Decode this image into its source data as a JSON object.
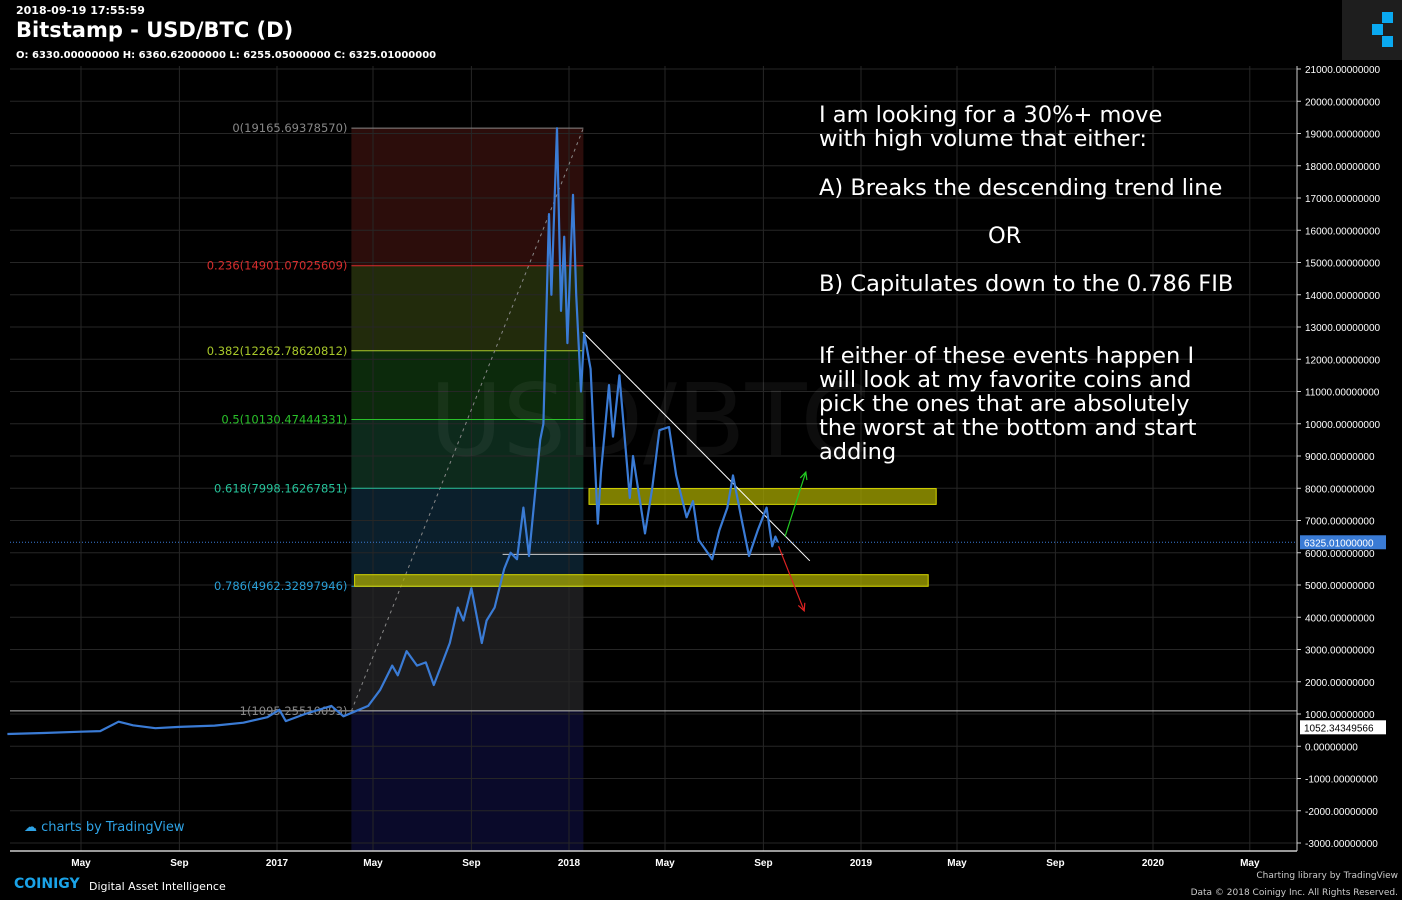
{
  "header": {
    "timestamp": "2018-09-19 17:55:59",
    "title": "Bitstamp - USD/BTC (D)",
    "ohlc": "O: 6330.00000000 H: 6360.62000000 L: 6255.05000000 C: 6325.01000000"
  },
  "watermark": "USD/BTC",
  "annotation": {
    "line1": "I am looking for a 30%+ move\nwith high volume that either:",
    "line2": "A) Breaks the descending trend line",
    "line3": "OR",
    "line4": "B) Capitulates down to the 0.786 FIB",
    "line5": "If either of these events happen I\nwill look at my favorite coins and\npick the ones that are absolutely\nthe worst at the bottom and start\nadding"
  },
  "footer": {
    "tv_credit": "charts by TradingView",
    "brand": "COINIGY",
    "brand_sub": "Digital Asset Intelligence",
    "library": "Charting library by  TradingView",
    "copyright": "Data © 2018  Coinigy Inc. All Rights Reserved."
  },
  "colors": {
    "price": "#3a7bd5",
    "last_price_bg": "#3a7bd5",
    "zone": "#a8a800",
    "up_arrow": "#22cc22",
    "down_arrow": "#dd2222"
  },
  "chart_data": {
    "type": "line",
    "title": "Bitstamp - USD/BTC (D)",
    "ylim": [
      -3000,
      21000
    ],
    "ytick_step": 1000,
    "ytick_labels": [
      "21000.00000000",
      "20000.00000000",
      "19000.00000000",
      "18000.00000000",
      "17000.00000000",
      "16000.00000000",
      "15000.00000000",
      "14000.00000000",
      "13000.00000000",
      "12000.00000000",
      "11000.00000000",
      "10000.00000000",
      "9000.00000000",
      "8000.00000000",
      "7000.00000000",
      "6000.00000000",
      "5000.00000000",
      "4000.00000000",
      "3000.00000000",
      "2000.00000000",
      "1000.00000000",
      "0.00000000",
      "-1000.00000000",
      "-2000.00000000",
      "-3000.00000000"
    ],
    "xticks": [
      {
        "date": "2016-05-01",
        "label": "May"
      },
      {
        "date": "2016-09-01",
        "label": "Sep"
      },
      {
        "date": "2017-01-01",
        "label": "2017"
      },
      {
        "date": "2017-05-01",
        "label": "May"
      },
      {
        "date": "2017-09-01",
        "label": "Sep"
      },
      {
        "date": "2018-01-01",
        "label": "2018"
      },
      {
        "date": "2018-05-01",
        "label": "May"
      },
      {
        "date": "2018-09-01",
        "label": "Sep"
      },
      {
        "date": "2019-01-01",
        "label": "2019"
      },
      {
        "date": "2019-05-01",
        "label": "May"
      },
      {
        "date": "2019-09-01",
        "label": "Sep"
      },
      {
        "date": "2020-01-01",
        "label": "2020"
      },
      {
        "date": "2020-05-01",
        "label": "May"
      }
    ],
    "last_price": {
      "value": 6325.01,
      "label": "6325.01000000"
    },
    "marker_price": {
      "value": 1052.34349566,
      "label": "1052.34349566"
    },
    "series": [
      {
        "name": "USD/BTC",
        "points": [
          [
            "2016-01-30",
            380
          ],
          [
            "2016-03-15",
            410
          ],
          [
            "2016-05-01",
            450
          ],
          [
            "2016-05-25",
            470
          ],
          [
            "2016-06-17",
            760
          ],
          [
            "2016-07-05",
            650
          ],
          [
            "2016-08-02",
            560
          ],
          [
            "2016-09-01",
            600
          ],
          [
            "2016-10-15",
            640
          ],
          [
            "2016-11-20",
            730
          ],
          [
            "2016-12-20",
            900
          ],
          [
            "2017-01-04",
            1130
          ],
          [
            "2017-01-12",
            780
          ],
          [
            "2017-02-05",
            1000
          ],
          [
            "2017-03-10",
            1250
          ],
          [
            "2017-03-25",
            930
          ],
          [
            "2017-04-25",
            1250
          ],
          [
            "2017-05-10",
            1750
          ],
          [
            "2017-05-25",
            2500
          ],
          [
            "2017-06-01",
            2200
          ],
          [
            "2017-06-12",
            2950
          ],
          [
            "2017-06-25",
            2500
          ],
          [
            "2017-07-06",
            2600
          ],
          [
            "2017-07-16",
            1900
          ],
          [
            "2017-08-05",
            3200
          ],
          [
            "2017-08-15",
            4300
          ],
          [
            "2017-08-22",
            3900
          ],
          [
            "2017-09-01",
            4900
          ],
          [
            "2017-09-14",
            3200
          ],
          [
            "2017-09-20",
            3900
          ],
          [
            "2017-09-30",
            4300
          ],
          [
            "2017-10-12",
            5500
          ],
          [
            "2017-10-20",
            6000
          ],
          [
            "2017-10-28",
            5800
          ],
          [
            "2017-11-05",
            7400
          ],
          [
            "2017-11-12",
            5900
          ],
          [
            "2017-11-26",
            9500
          ],
          [
            "2017-11-30",
            10000
          ],
          [
            "2017-12-07",
            16500
          ],
          [
            "2017-12-10",
            14000
          ],
          [
            "2017-12-17",
            19165
          ],
          [
            "2017-12-22",
            13500
          ],
          [
            "2017-12-26",
            15800
          ],
          [
            "2017-12-30",
            12500
          ],
          [
            "2018-01-06",
            17100
          ],
          [
            "2018-01-10",
            14000
          ],
          [
            "2018-01-16",
            11000
          ],
          [
            "2018-01-20",
            12800
          ],
          [
            "2018-01-28",
            11700
          ],
          [
            "2018-02-06",
            6900
          ],
          [
            "2018-02-10",
            8500
          ],
          [
            "2018-02-20",
            11200
          ],
          [
            "2018-02-25",
            9600
          ],
          [
            "2018-03-05",
            11500
          ],
          [
            "2018-03-18",
            7700
          ],
          [
            "2018-03-22",
            9000
          ],
          [
            "2018-04-06",
            6600
          ],
          [
            "2018-04-15",
            8000
          ],
          [
            "2018-04-24",
            9800
          ],
          [
            "2018-05-06",
            9900
          ],
          [
            "2018-05-15",
            8400
          ],
          [
            "2018-05-28",
            7100
          ],
          [
            "2018-06-05",
            7600
          ],
          [
            "2018-06-12",
            6400
          ],
          [
            "2018-06-29",
            5800
          ],
          [
            "2018-07-08",
            6700
          ],
          [
            "2018-07-18",
            7400
          ],
          [
            "2018-07-25",
            8400
          ],
          [
            "2018-08-05",
            7000
          ],
          [
            "2018-08-14",
            5900
          ],
          [
            "2018-08-25",
            6700
          ],
          [
            "2018-09-05",
            7400
          ],
          [
            "2018-09-12",
            6200
          ],
          [
            "2018-09-16",
            6500
          ],
          [
            "2018-09-19",
            6325
          ]
        ]
      }
    ],
    "fib_levels": [
      {
        "ratio": "0",
        "label": "0(19165.69378570)",
        "value": 19165.69,
        "color": "#888888",
        "band": "#2c0d0b"
      },
      {
        "ratio": "0.236",
        "label": "0.236(14901.07025609)",
        "value": 14901.07,
        "color": "#d62d2d",
        "band": "#222b0c"
      },
      {
        "ratio": "0.382",
        "label": "0.382(12262.78620812)",
        "value": 12262.79,
        "color": "#a8c82a",
        "band": "#0c2a0c"
      },
      {
        "ratio": "0.5",
        "label": "0.5(10130.47444331)",
        "value": 10130.47,
        "color": "#2ac12a",
        "band": "#0d2a1c"
      },
      {
        "ratio": "0.618",
        "label": "0.618(7998.16267851)",
        "value": 7998.16,
        "color": "#26c29a",
        "band": "#0b1f2c"
      },
      {
        "ratio": "0.786",
        "label": "0.786(4962.32897946)",
        "value": 4962.33,
        "color": "#2a9fd6",
        "band": "#1c1c1e"
      },
      {
        "ratio": "1",
        "label": "1(1095.25510093)",
        "value": 1095.26,
        "color": "#888888",
        "band": "#0a0a2a"
      }
    ],
    "fib_range": {
      "start": "2017-04-04",
      "end": "2018-01-19"
    },
    "zones": [
      {
        "from": 7500,
        "to": 7990,
        "start": "2018-01-26",
        "end": "2019-04-05"
      },
      {
        "from": 4960,
        "to": 5320,
        "start": "2017-04-08",
        "end": "2019-03-26"
      }
    ],
    "trendline": {
      "start": [
        "2018-01-18",
        12850
      ],
      "end": [
        "2018-10-29",
        5750
      ]
    },
    "support_line": {
      "value": 5950,
      "start": "2017-10-10",
      "end": "2018-09-26"
    },
    "arrows": [
      {
        "dir": "up",
        "from": [
          "2018-09-28",
          6500
        ],
        "to": [
          "2018-10-24",
          8500
        ]
      },
      {
        "dir": "down",
        "from": [
          "2018-09-20",
          6200
        ],
        "to": [
          "2018-10-22",
          4200
        ]
      }
    ]
  }
}
